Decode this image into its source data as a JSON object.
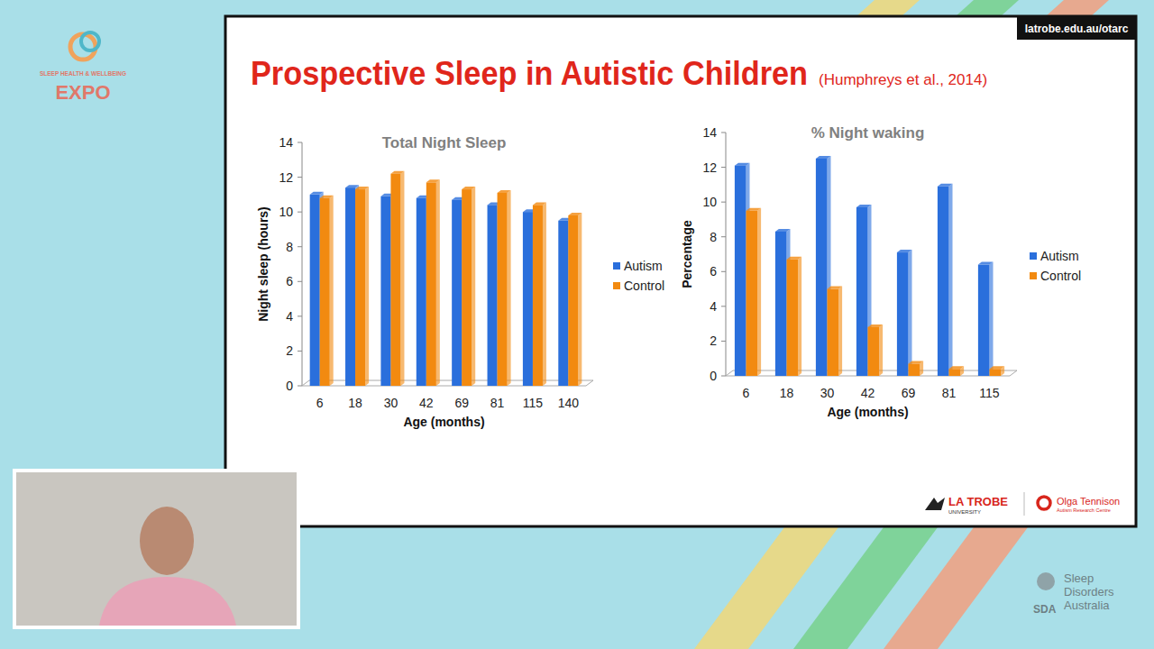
{
  "slide": {
    "title": "Prospective Sleep in Autistic Children",
    "citation": "(Humphreys et al., 2014)",
    "url": "latrobe.edu.au/otarc",
    "expo_top": "SLEEP HEALTH & WELLBEING",
    "expo_bottom": "EXPO",
    "university": "LA TROBE",
    "university_sub": "UNIVERSITY",
    "centre": "Olga Tennison",
    "centre_sub": "Autism Research Centre",
    "sda_name": [
      "Sleep",
      "Disorders",
      "Australia"
    ],
    "sda": "SDA"
  },
  "chart_data": [
    {
      "type": "bar",
      "title": "Total Night Sleep",
      "x_label": "Age (months)",
      "y_label": "Night sleep (hours)",
      "categories": [
        "6",
        "18",
        "30",
        "42",
        "69",
        "81",
        "115",
        "140"
      ],
      "series": [
        {
          "name": "Autism",
          "color": "#2a6fdc",
          "values": [
            11.0,
            11.4,
            10.9,
            10.8,
            10.7,
            10.4,
            10.0,
            9.5
          ]
        },
        {
          "name": "Control",
          "color": "#f28a10",
          "values": [
            10.8,
            11.3,
            12.2,
            11.7,
            11.3,
            11.1,
            10.4,
            9.8
          ]
        }
      ],
      "ylim": [
        0,
        14
      ],
      "yticks": [
        0,
        2,
        4,
        6,
        8,
        10,
        12,
        14
      ],
      "grid": false,
      "legend": "right"
    },
    {
      "type": "bar",
      "title": "% Night waking",
      "x_label": "Age (months)",
      "y_label": "Percentage",
      "categories": [
        "6",
        "18",
        "30",
        "42",
        "69",
        "81",
        "115"
      ],
      "series": [
        {
          "name": "Autism",
          "color": "#2a6fdc",
          "values": [
            12.1,
            8.3,
            12.5,
            9.7,
            7.1,
            10.9,
            6.4
          ]
        },
        {
          "name": "Control",
          "color": "#f28a10",
          "values": [
            9.5,
            6.7,
            5.0,
            2.8,
            0.7,
            0.4,
            0.4
          ]
        }
      ],
      "ylim": [
        0,
        14
      ],
      "yticks": [
        0,
        2,
        4,
        6,
        8,
        10,
        12,
        14
      ],
      "grid": false,
      "legend": "right"
    }
  ]
}
